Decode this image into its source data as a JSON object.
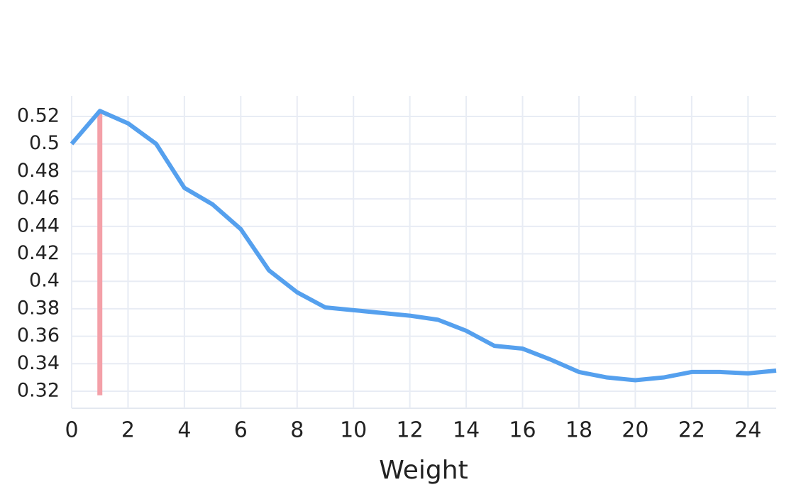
{
  "chart_data": {
    "type": "line",
    "x": [
      0,
      1,
      2,
      3,
      4,
      5,
      6,
      7,
      8,
      9,
      10,
      11,
      12,
      13,
      14,
      15,
      16,
      17,
      18,
      19,
      20,
      21,
      22,
      23,
      24,
      25
    ],
    "series": [
      {
        "color": "#55a0ee",
        "values": [
          0.5,
          0.524,
          0.515,
          0.5,
          0.468,
          0.456,
          0.438,
          0.408,
          0.392,
          0.381,
          0.379,
          0.377,
          0.375,
          0.372,
          0.364,
          0.353,
          0.351,
          0.343,
          0.334,
          0.33,
          0.328,
          0.33,
          0.334,
          0.334,
          0.333,
          0.335
        ]
      }
    ],
    "highlight": {
      "x": 1,
      "y": [
        0.317,
        0.524
      ],
      "color": "#f4a0a8"
    },
    "xlabel": "Weight",
    "xlim": [
      0,
      25
    ],
    "xticks": [
      0,
      2,
      4,
      6,
      8,
      10,
      12,
      14,
      16,
      18,
      20,
      22,
      24
    ],
    "ylim": [
      0.3076,
      0.535
    ],
    "yticks": [
      0.32,
      0.34,
      0.36,
      0.38,
      0.4,
      0.42,
      0.44,
      0.46,
      0.48,
      0.5,
      0.52
    ],
    "grid": true
  }
}
